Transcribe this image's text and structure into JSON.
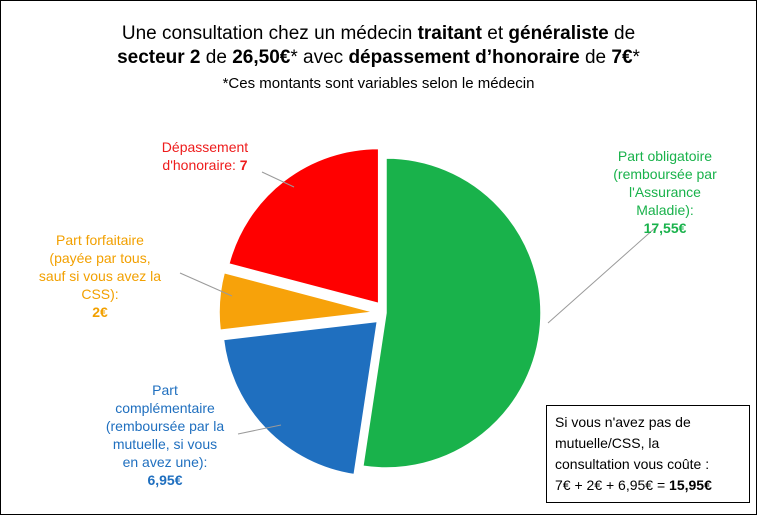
{
  "title": {
    "line1": [
      {
        "text": "Une consultation chez un médecin ",
        "bold": false
      },
      {
        "text": "traitant",
        "bold": true
      },
      {
        "text": " et ",
        "bold": false
      },
      {
        "text": "généraliste",
        "bold": true
      },
      {
        "text": " de",
        "bold": false
      }
    ],
    "line2": [
      {
        "text": "secteur 2",
        "bold": true
      },
      {
        "text": " de ",
        "bold": false
      },
      {
        "text": "26,50€",
        "bold": true
      },
      {
        "text": "* avec ",
        "bold": false
      },
      {
        "text": "dépassement d’honoraire",
        "bold": true
      },
      {
        "text": " de ",
        "bold": false
      },
      {
        "text": "7€",
        "bold": true
      },
      {
        "text": "*",
        "bold": false
      }
    ]
  },
  "subtitle": "*Ces montants sont variables selon le médecin",
  "chart_data": {
    "type": "pie",
    "start_angle_deg": 0,
    "direction": "clockwise",
    "slices": [
      {
        "key": "obligatoire",
        "label_lines": [
          "Part obligatoire",
          "(remboursée par",
          "l'Assurance",
          "Maladie):"
        ],
        "value_text": "17,55€",
        "value": 17.55,
        "color": "#19b24b",
        "explode": 0
      },
      {
        "key": "complementaire",
        "label_lines": [
          "Part",
          "complémentaire",
          "(remboursée par la",
          "mutuelle, si vous",
          "en avez une):"
        ],
        "value_text": "6,95€",
        "value": 6.95,
        "color": "#1f6fbf",
        "explode": 12
      },
      {
        "key": "forfaitaire",
        "label_lines": [
          "Part forfaitaire",
          "(payée par tous,",
          "sauf si vous avez la",
          "CSS):"
        ],
        "value_text": "2€",
        "value": 2,
        "color": "#f7a20a",
        "explode": 12
      },
      {
        "key": "depassement",
        "label_lines": [
          "Dépassement",
          "d'honoraire: "
        ],
        "value_text": "7",
        "value": 7,
        "color": "#ff0000",
        "explode": 12
      }
    ],
    "label_colors": {
      "obligatoire": "#19b24b",
      "complementaire": "#1f6fbf",
      "forfaitaire": "#f2a000",
      "depassement": "#ee1c1c"
    }
  },
  "note": {
    "lines": [
      "Si vous n'avez pas de",
      "mutuelle/CSS, la",
      "consultation vous coûte :"
    ],
    "formula": "7€ + 2€ + 6,95€ = ",
    "total": "15,95€"
  }
}
